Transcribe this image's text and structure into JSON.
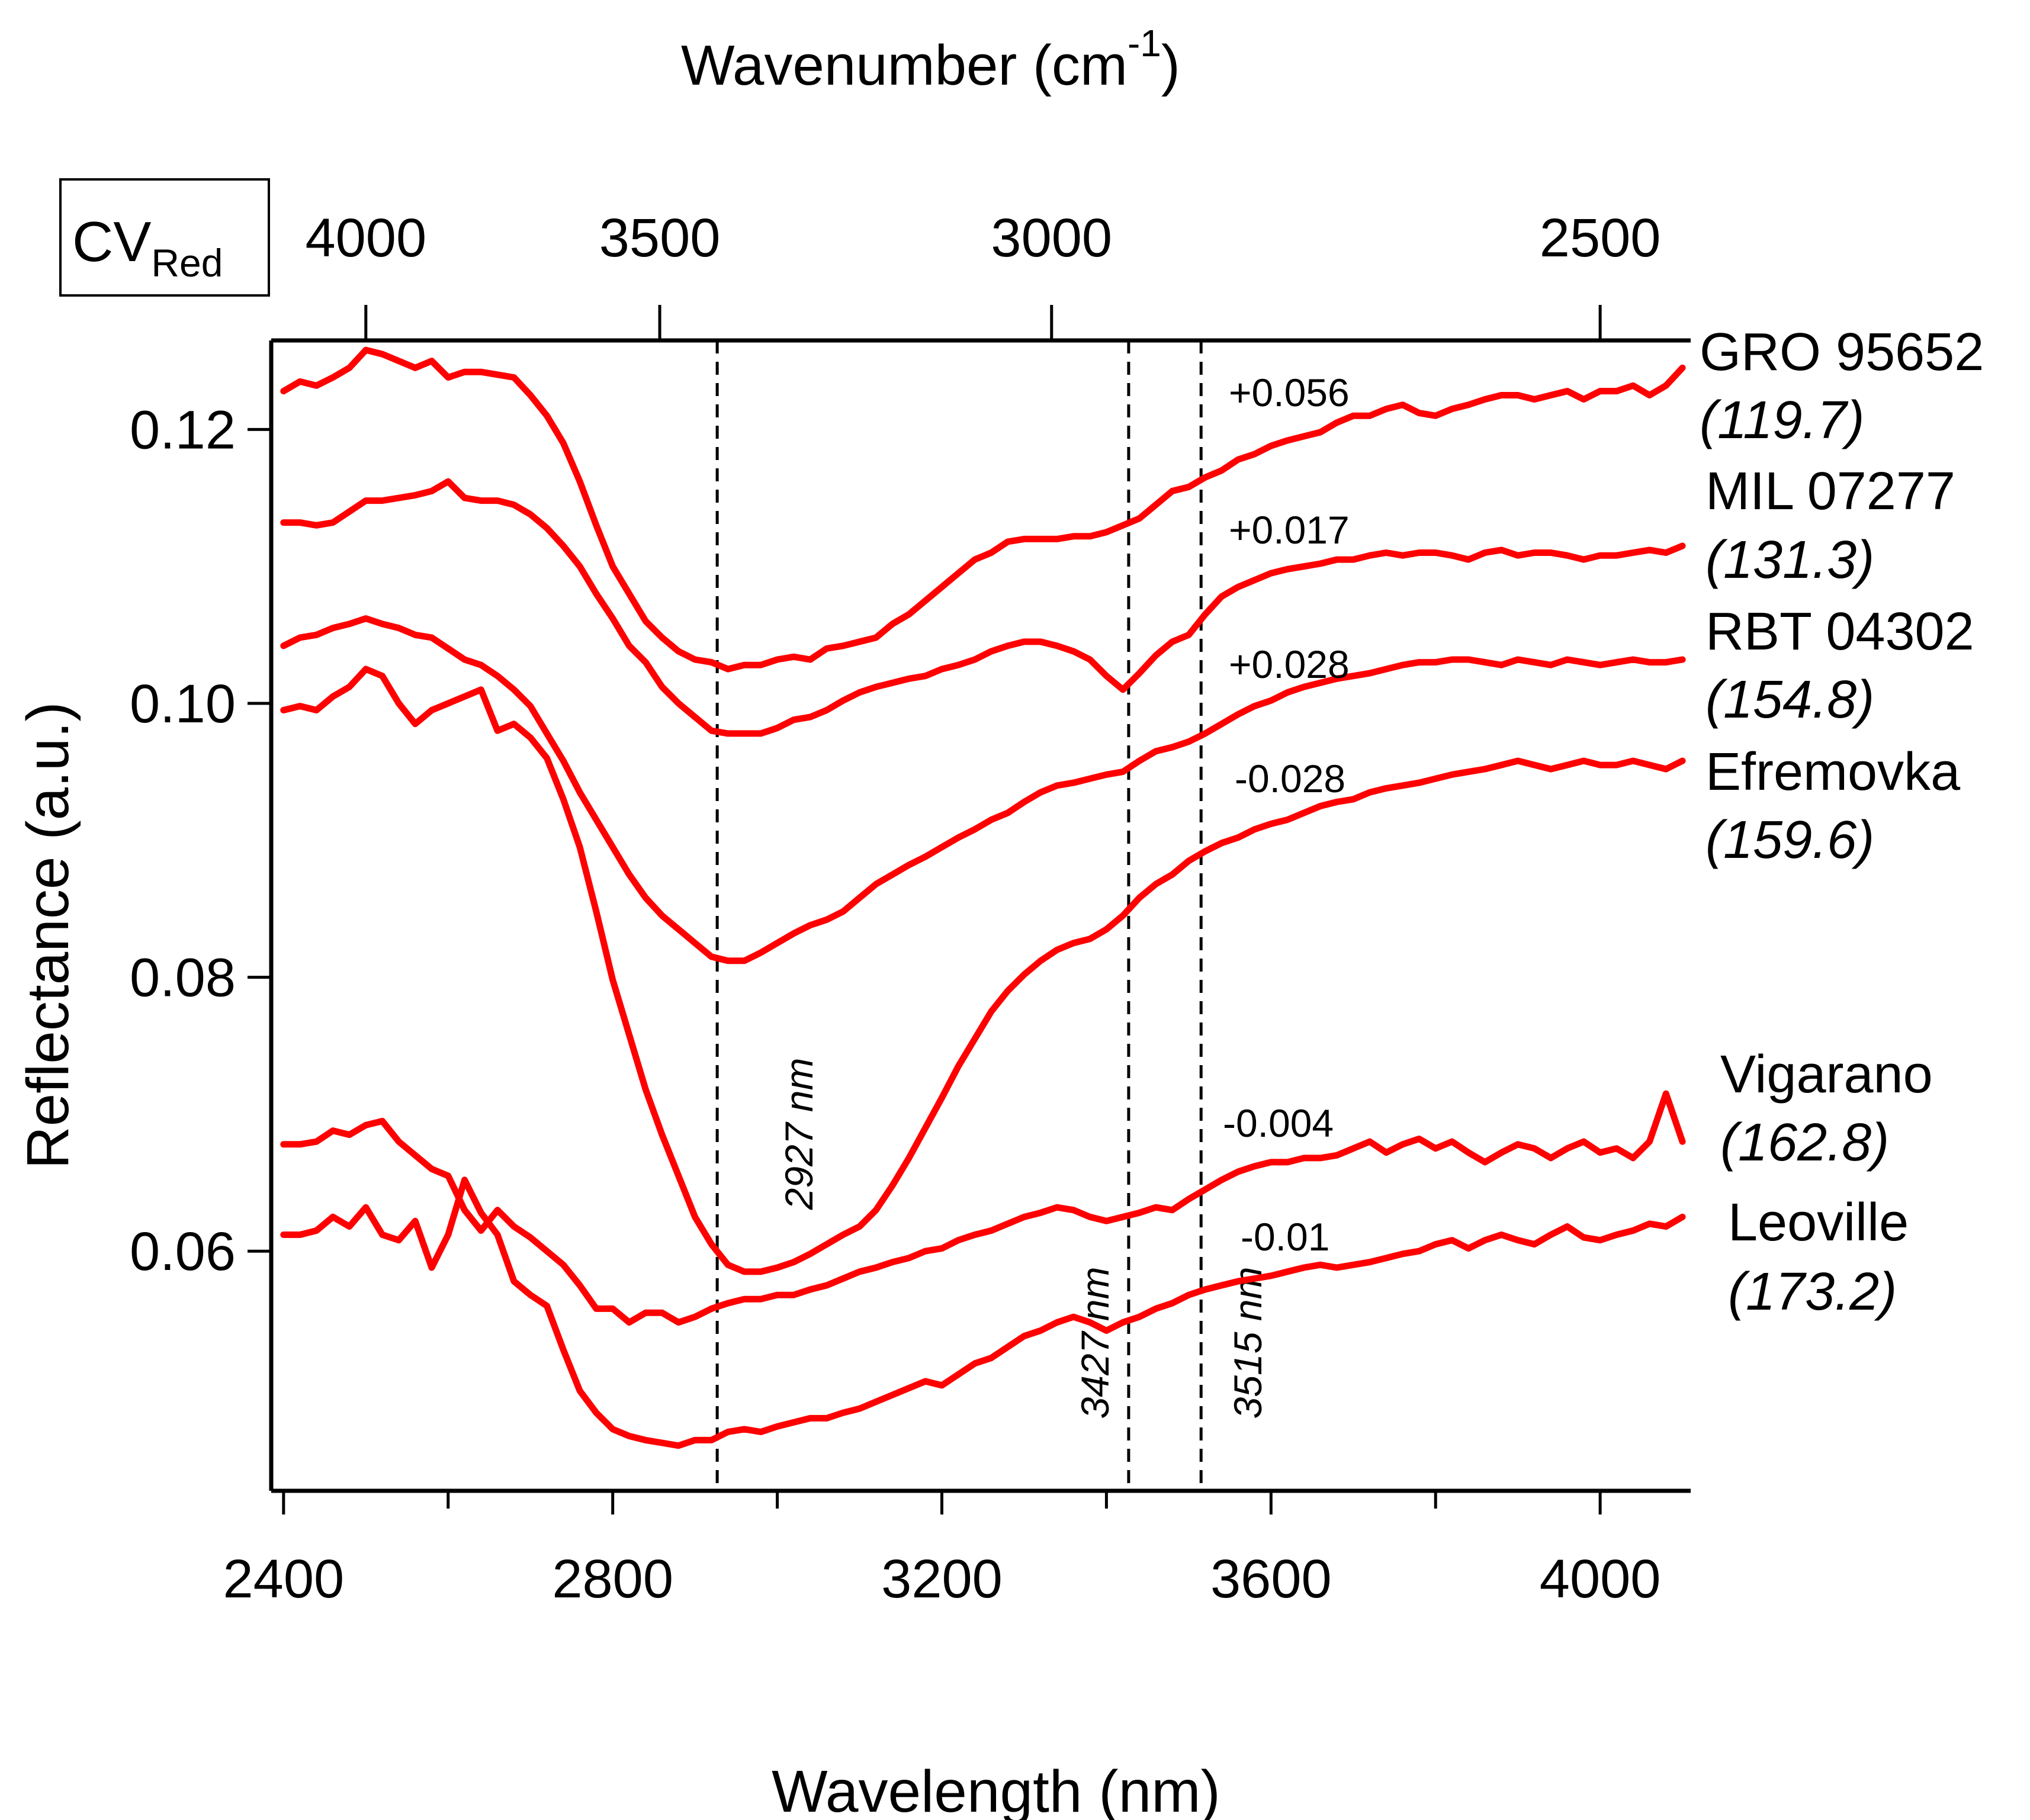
{
  "chart_data": {
    "type": "line",
    "badge": {
      "main": "CV",
      "sub": "Red"
    },
    "xlabel": "Wavelength (nm)",
    "x2label": {
      "main": "Wavenumber (cm",
      "sup": "-1",
      "close": ")"
    },
    "ylabel": "Reflectance (a.u.)",
    "xlim": [
      2385,
      4110
    ],
    "ylim": [
      0.0425,
      0.1265
    ],
    "xticks": [
      2400,
      2800,
      3200,
      3600,
      4000
    ],
    "xticks_minor": [
      2600,
      3000,
      3400,
      3800
    ],
    "x2ticks": [
      4000,
      3500,
      3000,
      2500
    ],
    "yticks": [
      0.06,
      0.08,
      0.1,
      0.12
    ],
    "ytick_labels": [
      "0.06",
      "0.08",
      "0.10",
      "0.12"
    ],
    "line_color": "#ff0000",
    "vlines": [
      {
        "x": 2927,
        "label": "2927 nm"
      },
      {
        "x": 3427,
        "label": "3427 nm"
      },
      {
        "x": 3515,
        "label": "3515 nm"
      }
    ],
    "series": [
      {
        "name": "GRO 95652",
        "value": "(119.7)",
        "offset": "+0.056",
        "x": [
          2400,
          2420,
          2440,
          2460,
          2480,
          2500,
          2520,
          2540,
          2560,
          2580,
          2600,
          2620,
          2640,
          2660,
          2680,
          2700,
          2720,
          2740,
          2760,
          2780,
          2800,
          2820,
          2840,
          2860,
          2880,
          2900,
          2920,
          2940,
          2960,
          2980,
          3000,
          3020,
          3040,
          3060,
          3080,
          3100,
          3120,
          3140,
          3160,
          3180,
          3200,
          3220,
          3240,
          3260,
          3280,
          3300,
          3320,
          3340,
          3360,
          3380,
          3400,
          3420,
          3440,
          3460,
          3480,
          3500,
          3520,
          3540,
          3560,
          3580,
          3600,
          3620,
          3640,
          3660,
          3680,
          3700,
          3720,
          3740,
          3760,
          3780,
          3800,
          3820,
          3840,
          3860,
          3880,
          3900,
          3920,
          3940,
          3960,
          3980,
          4000,
          4020,
          4040,
          4060,
          4080,
          4100
        ],
        "y": [
          0.1228,
          0.1235,
          0.1232,
          0.1238,
          0.1245,
          0.1258,
          0.1255,
          0.125,
          0.1245,
          0.125,
          0.1238,
          0.1242,
          0.1242,
          0.124,
          0.1238,
          0.1225,
          0.121,
          0.119,
          0.1162,
          0.113,
          0.11,
          0.108,
          0.106,
          0.1048,
          0.1038,
          0.1032,
          0.103,
          0.1025,
          0.1028,
          0.1028,
          0.1032,
          0.1034,
          0.1032,
          0.104,
          0.1042,
          0.1045,
          0.1048,
          0.1058,
          0.1065,
          0.1075,
          0.1085,
          0.1095,
          0.1105,
          0.111,
          0.1118,
          0.112,
          0.112,
          0.112,
          0.1122,
          0.1122,
          0.1125,
          0.113,
          0.1135,
          0.1145,
          0.1155,
          0.1158,
          0.1165,
          0.117,
          0.1178,
          0.1182,
          0.1188,
          0.1192,
          0.1195,
          0.1198,
          0.1205,
          0.121,
          0.121,
          0.1215,
          0.1218,
          0.1212,
          0.121,
          0.1215,
          0.1218,
          0.1222,
          0.1225,
          0.1225,
          0.1222,
          0.1225,
          0.1228,
          0.1222,
          0.1228,
          0.1228,
          0.1232,
          0.1225,
          0.1232,
          0.1245
        ]
      },
      {
        "name": "MIL 07277",
        "value": "(131.3)",
        "offset": "+0.017",
        "x": [
          2400,
          2420,
          2440,
          2460,
          2480,
          2500,
          2520,
          2540,
          2560,
          2580,
          2600,
          2620,
          2640,
          2660,
          2680,
          2700,
          2720,
          2740,
          2760,
          2780,
          2800,
          2820,
          2840,
          2860,
          2880,
          2900,
          2920,
          2940,
          2960,
          2980,
          3000,
          3020,
          3040,
          3060,
          3080,
          3100,
          3120,
          3140,
          3160,
          3180,
          3200,
          3220,
          3240,
          3260,
          3280,
          3300,
          3320,
          3340,
          3360,
          3380,
          3400,
          3420,
          3440,
          3460,
          3480,
          3500,
          3520,
          3540,
          3560,
          3580,
          3600,
          3620,
          3640,
          3660,
          3680,
          3700,
          3720,
          3740,
          3760,
          3780,
          3800,
          3820,
          3840,
          3860,
          3880,
          3900,
          3920,
          3940,
          3960,
          3980,
          4000,
          4020,
          4040,
          4060,
          4080,
          4100
        ],
        "y": [
          0.1132,
          0.1132,
          0.113,
          0.1132,
          0.114,
          0.1148,
          0.1148,
          0.115,
          0.1152,
          0.1155,
          0.1162,
          0.115,
          0.1148,
          0.1148,
          0.1145,
          0.1138,
          0.1128,
          0.1115,
          0.11,
          0.108,
          0.1062,
          0.1042,
          0.103,
          0.1012,
          0.1,
          0.099,
          0.098,
          0.0978,
          0.0978,
          0.0978,
          0.0982,
          0.0988,
          0.099,
          0.0995,
          0.1002,
          0.1008,
          0.1012,
          0.1015,
          0.1018,
          0.102,
          0.1025,
          0.1028,
          0.1032,
          0.1038,
          0.1042,
          0.1045,
          0.1045,
          0.1042,
          0.1038,
          0.1032,
          0.102,
          0.101,
          0.1022,
          0.1035,
          0.1045,
          0.105,
          0.1065,
          0.1078,
          0.1085,
          0.109,
          0.1095,
          0.1098,
          0.11,
          0.1102,
          0.1105,
          0.1105,
          0.1108,
          0.111,
          0.1108,
          0.111,
          0.111,
          0.1108,
          0.1105,
          0.111,
          0.1112,
          0.1108,
          0.111,
          0.111,
          0.1108,
          0.1105,
          0.1108,
          0.1108,
          0.111,
          0.1112,
          0.111,
          0.1115
        ]
      },
      {
        "name": "RBT 04302",
        "value": "(154.8)",
        "offset": "+0.028",
        "x": [
          2400,
          2420,
          2440,
          2460,
          2480,
          2500,
          2520,
          2540,
          2560,
          2580,
          2600,
          2620,
          2640,
          2660,
          2680,
          2700,
          2720,
          2740,
          2760,
          2780,
          2800,
          2820,
          2840,
          2860,
          2880,
          2900,
          2920,
          2940,
          2960,
          2980,
          3000,
          3020,
          3040,
          3060,
          3080,
          3100,
          3120,
          3140,
          3160,
          3180,
          3200,
          3220,
          3240,
          3260,
          3280,
          3300,
          3320,
          3340,
          3360,
          3380,
          3400,
          3420,
          3440,
          3460,
          3480,
          3500,
          3520,
          3540,
          3560,
          3580,
          3600,
          3620,
          3640,
          3660,
          3680,
          3700,
          3720,
          3740,
          3760,
          3780,
          3800,
          3820,
          3840,
          3860,
          3880,
          3900,
          3920,
          3940,
          3960,
          3980,
          4000,
          4020,
          4040,
          4060,
          4080,
          4100
        ],
        "y": [
          0.1042,
          0.1048,
          0.105,
          0.1055,
          0.1058,
          0.1062,
          0.1058,
          0.1055,
          0.105,
          0.1048,
          0.104,
          0.1032,
          0.1028,
          0.102,
          0.101,
          0.0998,
          0.0978,
          0.0958,
          0.0935,
          0.0915,
          0.0895,
          0.0875,
          0.0858,
          0.0845,
          0.0835,
          0.0825,
          0.0815,
          0.0812,
          0.0812,
          0.0818,
          0.0825,
          0.0832,
          0.0838,
          0.0842,
          0.0848,
          0.0858,
          0.0868,
          0.0875,
          0.0882,
          0.0888,
          0.0895,
          0.0902,
          0.0908,
          0.0915,
          0.092,
          0.0928,
          0.0935,
          0.094,
          0.0942,
          0.0945,
          0.0948,
          0.095,
          0.0958,
          0.0965,
          0.0968,
          0.0972,
          0.0978,
          0.0985,
          0.0992,
          0.0998,
          0.1002,
          0.1008,
          0.1012,
          0.1015,
          0.1018,
          0.102,
          0.1022,
          0.1025,
          0.1028,
          0.103,
          0.103,
          0.1032,
          0.1032,
          0.103,
          0.1028,
          0.1032,
          0.103,
          0.1028,
          0.1032,
          0.103,
          0.1028,
          0.103,
          0.1032,
          0.103,
          0.103,
          0.1032
        ]
      },
      {
        "name": "Efremovka",
        "value": "(159.6)",
        "offset": "-0.028",
        "x": [
          2400,
          2420,
          2440,
          2460,
          2480,
          2500,
          2520,
          2540,
          2560,
          2580,
          2600,
          2620,
          2640,
          2660,
          2680,
          2700,
          2720,
          2740,
          2760,
          2780,
          2800,
          2820,
          2840,
          2860,
          2880,
          2900,
          2920,
          2940,
          2960,
          2980,
          3000,
          3020,
          3040,
          3060,
          3080,
          3100,
          3120,
          3140,
          3160,
          3180,
          3200,
          3220,
          3240,
          3260,
          3280,
          3300,
          3320,
          3340,
          3360,
          3380,
          3400,
          3420,
          3440,
          3460,
          3480,
          3500,
          3520,
          3540,
          3560,
          3580,
          3600,
          3620,
          3640,
          3660,
          3680,
          3700,
          3720,
          3740,
          3760,
          3780,
          3800,
          3820,
          3840,
          3860,
          3880,
          3900,
          3920,
          3940,
          3960,
          3980,
          4000,
          4020,
          4040,
          4060,
          4080,
          4100
        ],
        "y": [
          0.0995,
          0.0998,
          0.0995,
          0.1005,
          0.1012,
          0.1025,
          0.102,
          0.1,
          0.0985,
          0.0995,
          0.1,
          0.1005,
          0.101,
          0.098,
          0.0985,
          0.0975,
          0.096,
          0.093,
          0.0895,
          0.0848,
          0.0798,
          0.0758,
          0.0718,
          0.0685,
          0.0655,
          0.0625,
          0.0605,
          0.059,
          0.0585,
          0.0585,
          0.0588,
          0.0592,
          0.0598,
          0.0605,
          0.0612,
          0.0618,
          0.063,
          0.0648,
          0.0668,
          0.069,
          0.0712,
          0.0735,
          0.0755,
          0.0775,
          0.079,
          0.0802,
          0.0812,
          0.082,
          0.0825,
          0.0828,
          0.0835,
          0.0845,
          0.0858,
          0.0868,
          0.0875,
          0.0885,
          0.0892,
          0.0898,
          0.0902,
          0.0908,
          0.0912,
          0.0915,
          0.092,
          0.0925,
          0.0928,
          0.093,
          0.0935,
          0.0938,
          0.094,
          0.0942,
          0.0945,
          0.0948,
          0.095,
          0.0952,
          0.0955,
          0.0958,
          0.0955,
          0.0952,
          0.0955,
          0.0958,
          0.0955,
          0.0955,
          0.0958,
          0.0955,
          0.0952,
          0.0958
        ]
      },
      {
        "name": "Vigarano",
        "value": "(162.8)",
        "offset": "-0.004",
        "x": [
          2400,
          2420,
          2440,
          2460,
          2480,
          2500,
          2520,
          2540,
          2560,
          2580,
          2600,
          2620,
          2640,
          2660,
          2680,
          2700,
          2720,
          2740,
          2760,
          2780,
          2800,
          2820,
          2840,
          2860,
          2880,
          2900,
          2920,
          2940,
          2960,
          2980,
          3000,
          3020,
          3040,
          3060,
          3080,
          3100,
          3120,
          3140,
          3160,
          3180,
          3200,
          3220,
          3240,
          3260,
          3280,
          3300,
          3320,
          3340,
          3360,
          3380,
          3400,
          3420,
          3440,
          3460,
          3480,
          3500,
          3520,
          3540,
          3560,
          3580,
          3600,
          3620,
          3640,
          3660,
          3680,
          3700,
          3720,
          3740,
          3760,
          3780,
          3800,
          3820,
          3840,
          3860,
          3880,
          3900,
          3920,
          3940,
          3960,
          3980,
          4000,
          4020,
          4040,
          4060,
          4080,
          4100
        ],
        "y": [
          0.0678,
          0.0678,
          0.068,
          0.0688,
          0.0685,
          0.0692,
          0.0695,
          0.068,
          0.067,
          0.066,
          0.0655,
          0.063,
          0.0615,
          0.063,
          0.0618,
          0.061,
          0.06,
          0.059,
          0.0575,
          0.0558,
          0.0558,
          0.0548,
          0.0555,
          0.0555,
          0.0548,
          0.0552,
          0.0558,
          0.0562,
          0.0565,
          0.0565,
          0.0568,
          0.0568,
          0.0572,
          0.0575,
          0.058,
          0.0585,
          0.0588,
          0.0592,
          0.0595,
          0.06,
          0.0602,
          0.0608,
          0.0612,
          0.0615,
          0.062,
          0.0625,
          0.0628,
          0.0632,
          0.063,
          0.0625,
          0.0622,
          0.0625,
          0.0628,
          0.0632,
          0.063,
          0.0638,
          0.0645,
          0.0652,
          0.0658,
          0.0662,
          0.0665,
          0.0665,
          0.0668,
          0.0668,
          0.067,
          0.0675,
          0.068,
          0.0672,
          0.0678,
          0.0682,
          0.0675,
          0.068,
          0.0672,
          0.0665,
          0.0672,
          0.0678,
          0.0675,
          0.0668,
          0.0675,
          0.068,
          0.0672,
          0.0675,
          0.0668,
          0.068,
          0.0715,
          0.068
        ]
      },
      {
        "name": "Leoville",
        "value": "(173.2)",
        "offset": "-0.01",
        "x": [
          2400,
          2420,
          2440,
          2460,
          2480,
          2500,
          2520,
          2540,
          2560,
          2580,
          2600,
          2620,
          2640,
          2660,
          2680,
          2700,
          2720,
          2740,
          2760,
          2780,
          2800,
          2820,
          2840,
          2860,
          2880,
          2900,
          2920,
          2940,
          2960,
          2980,
          3000,
          3020,
          3040,
          3060,
          3080,
          3100,
          3120,
          3140,
          3160,
          3180,
          3200,
          3220,
          3240,
          3260,
          3280,
          3300,
          3320,
          3340,
          3360,
          3380,
          3400,
          3420,
          3440,
          3460,
          3480,
          3500,
          3520,
          3540,
          3560,
          3580,
          3600,
          3620,
          3640,
          3660,
          3680,
          3700,
          3720,
          3740,
          3760,
          3780,
          3800,
          3820,
          3840,
          3860,
          3880,
          3900,
          3920,
          3940,
          3960,
          3980,
          4000,
          4020,
          4040,
          4060,
          4080,
          4100
        ],
        "y": [
          0.0612,
          0.0612,
          0.0615,
          0.0625,
          0.0618,
          0.0632,
          0.0612,
          0.0608,
          0.0622,
          0.0588,
          0.0612,
          0.0652,
          0.0628,
          0.0612,
          0.0578,
          0.0568,
          0.056,
          0.0528,
          0.0498,
          0.0482,
          0.047,
          0.0465,
          0.0462,
          0.046,
          0.0458,
          0.0462,
          0.0462,
          0.0468,
          0.047,
          0.0468,
          0.0472,
          0.0475,
          0.0478,
          0.0478,
          0.0482,
          0.0485,
          0.049,
          0.0495,
          0.05,
          0.0505,
          0.0502,
          0.051,
          0.0518,
          0.0522,
          0.053,
          0.0538,
          0.0542,
          0.0548,
          0.0552,
          0.0548,
          0.0542,
          0.0548,
          0.0552,
          0.0558,
          0.0562,
          0.0568,
          0.0572,
          0.0575,
          0.0578,
          0.058,
          0.0582,
          0.0585,
          0.0588,
          0.059,
          0.0588,
          0.059,
          0.0592,
          0.0595,
          0.0598,
          0.06,
          0.0605,
          0.0608,
          0.0602,
          0.0608,
          0.0612,
          0.0608,
          0.0605,
          0.0612,
          0.0618,
          0.061,
          0.0608,
          0.0612,
          0.0615,
          0.062,
          0.0618,
          0.0625
        ]
      }
    ]
  }
}
